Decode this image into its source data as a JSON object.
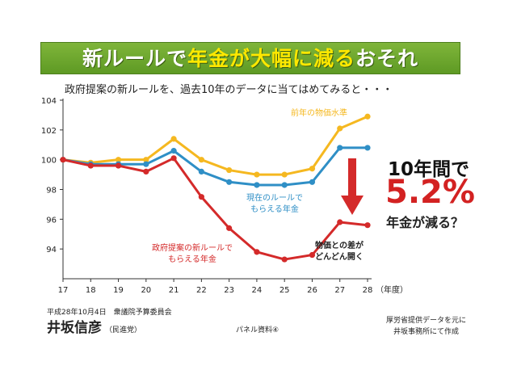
{
  "header": {
    "title_parts": [
      {
        "text": "新ルールで",
        "color": "white"
      },
      {
        "text": "年金が大幅に減る",
        "color": "yellow"
      },
      {
        "text": "おそれ",
        "color": "white"
      }
    ]
  },
  "subtitle": "政府提案の新ルールを、過去10年のデータに当てはめてみると・・・",
  "callout": {
    "line1": "10年間で",
    "line2": "5.2%",
    "line3": "年金が減る？"
  },
  "footer": {
    "date": "平成28年10月4日　衆議院予算委員会",
    "name": "井坂信彦",
    "party": "（民進党）",
    "panel": "パネル資料④",
    "source_line1": "厚労省提供データを元に",
    "source_line2": "井坂事務所にて作成"
  },
  "colors": {
    "banner": "#6aa62c",
    "yellow_series": "#f5b820",
    "blue_series": "#2f8fc6",
    "red_series": "#d42a2a",
    "accent_red": "#d32222"
  },
  "chart_data": {
    "type": "line",
    "x": [
      "17",
      "18",
      "19",
      "20",
      "21",
      "22",
      "23",
      "24",
      "25",
      "26",
      "27",
      "28"
    ],
    "x_unit": "（年度）",
    "y_ticks": [
      94,
      96,
      98,
      100,
      102,
      104
    ],
    "ylim": [
      92,
      104
    ],
    "grid": false,
    "series": [
      {
        "name": "前年の物価水準",
        "color": "#f5b820",
        "values": [
          100,
          99.8,
          100,
          100,
          101.4,
          100,
          99.3,
          99,
          99,
          99.4,
          102.1,
          102.9
        ]
      },
      {
        "name": "現在のルールで もらえる年金",
        "color": "#2f8fc6",
        "values": [
          100,
          99.7,
          99.7,
          99.7,
          100.6,
          99.2,
          98.5,
          98.3,
          98.3,
          98.5,
          100.8,
          100.8
        ]
      },
      {
        "name": "政府提案の新ルールで もらえる年金",
        "color": "#d42a2a",
        "values": [
          100,
          99.6,
          99.6,
          99.2,
          100.1,
          97.5,
          95.4,
          93.8,
          93.3,
          93.6,
          95.8,
          95.6
        ]
      }
    ],
    "annotations": [
      {
        "text": "物価との差が どんどん開く"
      }
    ]
  }
}
